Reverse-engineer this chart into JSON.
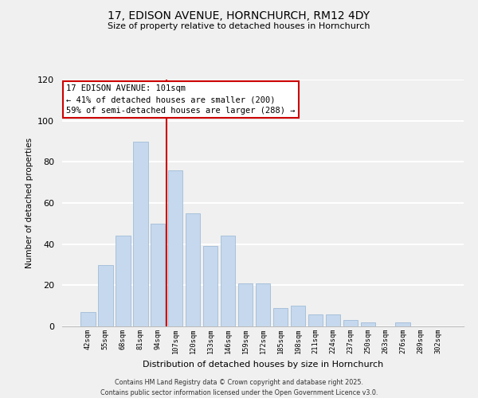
{
  "title_line1": "17, EDISON AVENUE, HORNCHURCH, RM12 4DY",
  "title_line2": "Size of property relative to detached houses in Hornchurch",
  "xlabel": "Distribution of detached houses by size in Hornchurch",
  "ylabel": "Number of detached properties",
  "bar_labels": [
    "42sqm",
    "55sqm",
    "68sqm",
    "81sqm",
    "94sqm",
    "107sqm",
    "120sqm",
    "133sqm",
    "146sqm",
    "159sqm",
    "172sqm",
    "185sqm",
    "198sqm",
    "211sqm",
    "224sqm",
    "237sqm",
    "250sqm",
    "263sqm",
    "276sqm",
    "289sqm",
    "302sqm"
  ],
  "bar_values": [
    7,
    30,
    44,
    90,
    50,
    76,
    55,
    39,
    44,
    21,
    21,
    9,
    10,
    6,
    6,
    3,
    2,
    0,
    2,
    0,
    0
  ],
  "bar_color": "#c5d8ed",
  "bar_edge_color": "#a0bcd8",
  "vline_x_index": 5,
  "vline_color": "#cc0000",
  "annotation_title": "17 EDISON AVENUE: 101sqm",
  "annotation_line1": "← 41% of detached houses are smaller (200)",
  "annotation_line2": "59% of semi-detached houses are larger (288) →",
  "annotation_box_color": "white",
  "annotation_box_edge": "#cc0000",
  "ylim": [
    0,
    120
  ],
  "yticks": [
    0,
    20,
    40,
    60,
    80,
    100,
    120
  ],
  "footer_line1": "Contains HM Land Registry data © Crown copyright and database right 2025.",
  "footer_line2": "Contains public sector information licensed under the Open Government Licence v3.0.",
  "bg_color": "#f0f0f0",
  "grid_color": "white"
}
